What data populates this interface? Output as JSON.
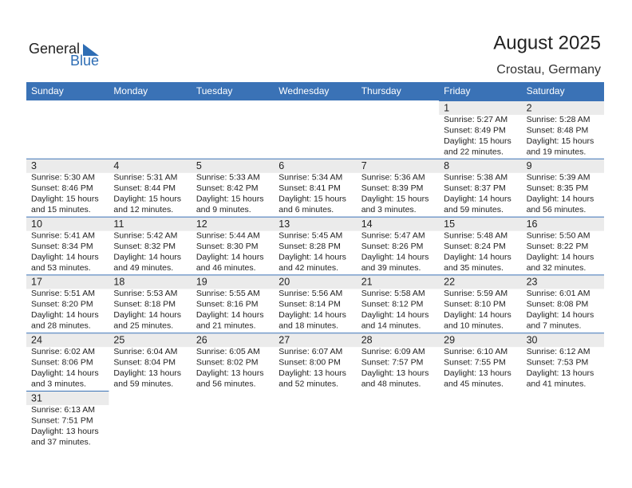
{
  "header": {
    "logo": {
      "first": "General",
      "second": "Blue"
    },
    "title": "August 2025",
    "subtitle": "Crostau, Germany"
  },
  "days": [
    "Sunday",
    "Monday",
    "Tuesday",
    "Wednesday",
    "Thursday",
    "Friday",
    "Saturday"
  ],
  "weeks": [
    [
      null,
      null,
      null,
      null,
      null,
      {
        "day": 1,
        "sunrise": "Sunrise: 5:27 AM",
        "sunset": "Sunset: 8:49 PM",
        "daylight": "Daylight: 15 hours",
        "minutes": "and 22 minutes."
      },
      {
        "day": 2,
        "sunrise": "Sunrise: 5:28 AM",
        "sunset": "Sunset: 8:48 PM",
        "daylight": "Daylight: 15 hours",
        "minutes": "and 19 minutes."
      }
    ],
    [
      {
        "day": 3,
        "sunrise": "Sunrise: 5:30 AM",
        "sunset": "Sunset: 8:46 PM",
        "daylight": "Daylight: 15 hours",
        "minutes": "and 15 minutes."
      },
      {
        "day": 4,
        "sunrise": "Sunrise: 5:31 AM",
        "sunset": "Sunset: 8:44 PM",
        "daylight": "Daylight: 15 hours",
        "minutes": "and 12 minutes."
      },
      {
        "day": 5,
        "sunrise": "Sunrise: 5:33 AM",
        "sunset": "Sunset: 8:42 PM",
        "daylight": "Daylight: 15 hours",
        "minutes": "and 9 minutes."
      },
      {
        "day": 6,
        "sunrise": "Sunrise: 5:34 AM",
        "sunset": "Sunset: 8:41 PM",
        "daylight": "Daylight: 15 hours",
        "minutes": "and 6 minutes."
      },
      {
        "day": 7,
        "sunrise": "Sunrise: 5:36 AM",
        "sunset": "Sunset: 8:39 PM",
        "daylight": "Daylight: 15 hours",
        "minutes": "and 3 minutes."
      },
      {
        "day": 8,
        "sunrise": "Sunrise: 5:38 AM",
        "sunset": "Sunset: 8:37 PM",
        "daylight": "Daylight: 14 hours",
        "minutes": "and 59 minutes."
      },
      {
        "day": 9,
        "sunrise": "Sunrise: 5:39 AM",
        "sunset": "Sunset: 8:35 PM",
        "daylight": "Daylight: 14 hours",
        "minutes": "and 56 minutes."
      }
    ],
    [
      {
        "day": 10,
        "sunrise": "Sunrise: 5:41 AM",
        "sunset": "Sunset: 8:34 PM",
        "daylight": "Daylight: 14 hours",
        "minutes": "and 53 minutes."
      },
      {
        "day": 11,
        "sunrise": "Sunrise: 5:42 AM",
        "sunset": "Sunset: 8:32 PM",
        "daylight": "Daylight: 14 hours",
        "minutes": "and 49 minutes."
      },
      {
        "day": 12,
        "sunrise": "Sunrise: 5:44 AM",
        "sunset": "Sunset: 8:30 PM",
        "daylight": "Daylight: 14 hours",
        "minutes": "and 46 minutes."
      },
      {
        "day": 13,
        "sunrise": "Sunrise: 5:45 AM",
        "sunset": "Sunset: 8:28 PM",
        "daylight": "Daylight: 14 hours",
        "minutes": "and 42 minutes."
      },
      {
        "day": 14,
        "sunrise": "Sunrise: 5:47 AM",
        "sunset": "Sunset: 8:26 PM",
        "daylight": "Daylight: 14 hours",
        "minutes": "and 39 minutes."
      },
      {
        "day": 15,
        "sunrise": "Sunrise: 5:48 AM",
        "sunset": "Sunset: 8:24 PM",
        "daylight": "Daylight: 14 hours",
        "minutes": "and 35 minutes."
      },
      {
        "day": 16,
        "sunrise": "Sunrise: 5:50 AM",
        "sunset": "Sunset: 8:22 PM",
        "daylight": "Daylight: 14 hours",
        "minutes": "and 32 minutes."
      }
    ],
    [
      {
        "day": 17,
        "sunrise": "Sunrise: 5:51 AM",
        "sunset": "Sunset: 8:20 PM",
        "daylight": "Daylight: 14 hours",
        "minutes": "and 28 minutes."
      },
      {
        "day": 18,
        "sunrise": "Sunrise: 5:53 AM",
        "sunset": "Sunset: 8:18 PM",
        "daylight": "Daylight: 14 hours",
        "minutes": "and 25 minutes."
      },
      {
        "day": 19,
        "sunrise": "Sunrise: 5:55 AM",
        "sunset": "Sunset: 8:16 PM",
        "daylight": "Daylight: 14 hours",
        "minutes": "and 21 minutes."
      },
      {
        "day": 20,
        "sunrise": "Sunrise: 5:56 AM",
        "sunset": "Sunset: 8:14 PM",
        "daylight": "Daylight: 14 hours",
        "minutes": "and 18 minutes."
      },
      {
        "day": 21,
        "sunrise": "Sunrise: 5:58 AM",
        "sunset": "Sunset: 8:12 PM",
        "daylight": "Daylight: 14 hours",
        "minutes": "and 14 minutes."
      },
      {
        "day": 22,
        "sunrise": "Sunrise: 5:59 AM",
        "sunset": "Sunset: 8:10 PM",
        "daylight": "Daylight: 14 hours",
        "minutes": "and 10 minutes."
      },
      {
        "day": 23,
        "sunrise": "Sunrise: 6:01 AM",
        "sunset": "Sunset: 8:08 PM",
        "daylight": "Daylight: 14 hours",
        "minutes": "and 7 minutes."
      }
    ],
    [
      {
        "day": 24,
        "sunrise": "Sunrise: 6:02 AM",
        "sunset": "Sunset: 8:06 PM",
        "daylight": "Daylight: 14 hours",
        "minutes": "and 3 minutes."
      },
      {
        "day": 25,
        "sunrise": "Sunrise: 6:04 AM",
        "sunset": "Sunset: 8:04 PM",
        "daylight": "Daylight: 13 hours",
        "minutes": "and 59 minutes."
      },
      {
        "day": 26,
        "sunrise": "Sunrise: 6:05 AM",
        "sunset": "Sunset: 8:02 PM",
        "daylight": "Daylight: 13 hours",
        "minutes": "and 56 minutes."
      },
      {
        "day": 27,
        "sunrise": "Sunrise: 6:07 AM",
        "sunset": "Sunset: 8:00 PM",
        "daylight": "Daylight: 13 hours",
        "minutes": "and 52 minutes."
      },
      {
        "day": 28,
        "sunrise": "Sunrise: 6:09 AM",
        "sunset": "Sunset: 7:57 PM",
        "daylight": "Daylight: 13 hours",
        "minutes": "and 48 minutes."
      },
      {
        "day": 29,
        "sunrise": "Sunrise: 6:10 AM",
        "sunset": "Sunset: 7:55 PM",
        "daylight": "Daylight: 13 hours",
        "minutes": "and 45 minutes."
      },
      {
        "day": 30,
        "sunrise": "Sunrise: 6:12 AM",
        "sunset": "Sunset: 7:53 PM",
        "daylight": "Daylight: 13 hours",
        "minutes": "and 41 minutes."
      }
    ],
    [
      {
        "day": 31,
        "sunrise": "Sunrise: 6:13 AM",
        "sunset": "Sunset: 7:51 PM",
        "daylight": "Daylight: 13 hours",
        "minutes": "and 37 minutes."
      },
      null,
      null,
      null,
      null,
      null,
      null
    ]
  ]
}
